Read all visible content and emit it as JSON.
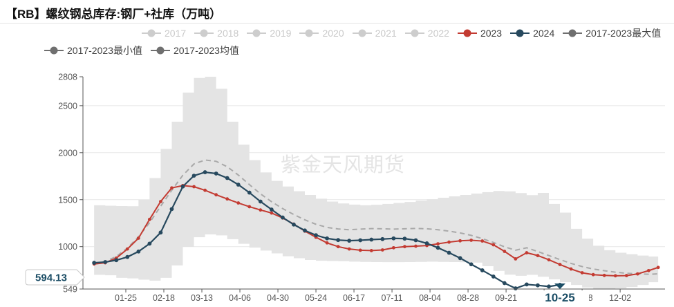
{
  "title": "【RB】螺纹钢总库存:钢厂+社库（万吨）",
  "watermark": "紫金天风期货",
  "legend": {
    "row1": [
      {
        "label": "2017",
        "color": "#cdcdcd",
        "text_color": "#c9c9c9",
        "selected": false
      },
      {
        "label": "2018",
        "color": "#cdcdcd",
        "text_color": "#c9c9c9",
        "selected": false
      },
      {
        "label": "2019",
        "color": "#cdcdcd",
        "text_color": "#c9c9c9",
        "selected": false
      },
      {
        "label": "2020",
        "color": "#cdcdcd",
        "text_color": "#c9c9c9",
        "selected": false
      },
      {
        "label": "2021",
        "color": "#cdcdcd",
        "text_color": "#c9c9c9",
        "selected": false
      },
      {
        "label": "2022",
        "color": "#cdcdcd",
        "text_color": "#c9c9c9",
        "selected": false
      },
      {
        "label": "2023",
        "color": "#c33b32",
        "text_color": "#3f3f3f",
        "selected": true
      },
      {
        "label": "2024",
        "color": "#27495e",
        "text_color": "#3f3f3f",
        "selected": true
      },
      {
        "label": "2017-2023最大值",
        "color": "#6f6f6f",
        "text_color": "#3f3f3f",
        "selected": true
      }
    ],
    "row2": [
      {
        "label": "2017-2023最小值",
        "color": "#6f6f6f",
        "text_color": "#3f3f3f",
        "selected": true
      },
      {
        "label": "2017-2023均值",
        "color": "#6f6f6f",
        "text_color": "#3f3f3f",
        "selected": true
      }
    ]
  },
  "chart_data": {
    "type": "line",
    "title": "【RB】螺纹钢总库存:钢厂+社库（万吨）",
    "ylabel": "万吨",
    "ylim": [
      549,
      2808
    ],
    "grid": true,
    "y_ticks": [
      {
        "v": 2808,
        "label": "2808",
        "grid": false
      },
      {
        "v": 2500,
        "label": "2500",
        "grid": true
      },
      {
        "v": 2000,
        "label": "2000",
        "grid": true
      },
      {
        "v": 1500,
        "label": "1500",
        "grid": true
      },
      {
        "v": 1000,
        "label": "1000",
        "grid": true
      },
      {
        "v": 549,
        "label": "549",
        "grid": false
      }
    ],
    "x_ticks": [
      {
        "d": 25,
        "label": "01-25"
      },
      {
        "d": 49,
        "label": "02-18"
      },
      {
        "d": 73,
        "label": "03-13"
      },
      {
        "d": 97,
        "label": "04-06"
      },
      {
        "d": 121,
        "label": "04-30"
      },
      {
        "d": 145,
        "label": "05-24"
      },
      {
        "d": 169,
        "label": "06-17"
      },
      {
        "d": 193,
        "label": "07-11"
      },
      {
        "d": 217,
        "label": "08-04"
      },
      {
        "d": 241,
        "label": "08-28"
      },
      {
        "d": 265,
        "label": "09-21"
      },
      {
        "d": 289,
        "label": ""
      },
      {
        "d": 313,
        "label": "11-08"
      },
      {
        "d": 337,
        "label": "12-02"
      }
    ],
    "days": [
      5,
      12,
      19,
      26,
      33,
      40,
      47,
      54,
      61,
      68,
      75,
      82,
      89,
      96,
      103,
      110,
      117,
      124,
      131,
      138,
      145,
      152,
      159,
      166,
      173,
      180,
      187,
      194,
      201,
      208,
      215,
      222,
      229,
      236,
      243,
      250,
      257,
      264,
      271,
      278,
      285,
      292,
      299,
      306,
      313,
      320,
      327,
      334,
      341,
      348,
      355,
      361
    ],
    "series": [
      {
        "name": "2017-2023最大值",
        "role": "band-upper",
        "color": "#e4e4e4",
        "values": [
          1440,
          1436,
          1432,
          1430,
          1500,
          1730,
          2040,
          2330,
          2640,
          2795,
          2808,
          2680,
          2330,
          2085,
          1920,
          1790,
          1700,
          1640,
          1590,
          1550,
          1510,
          1480,
          1460,
          1448,
          1440,
          1446,
          1455,
          1465,
          1475,
          1490,
          1505,
          1520,
          1535,
          1550,
          1565,
          1580,
          1592,
          1588,
          1570,
          1548,
          1572,
          1455,
          1362,
          1190,
          1085,
          1010,
          962,
          935,
          920,
          905,
          895,
          890
        ]
      },
      {
        "name": "2017-2023最小值",
        "role": "band-lower",
        "color": "#e4e4e4",
        "values": [
          700,
          695,
          668,
          662,
          648,
          638,
          668,
          800,
          1000,
          1100,
          1130,
          1120,
          1080,
          1030,
          990,
          958,
          928,
          898,
          876,
          858,
          850,
          847,
          845,
          841,
          838,
          836,
          835,
          835,
          836,
          838,
          840,
          838,
          836,
          834,
          830,
          792,
          742,
          702,
          690,
          700,
          680,
          652,
          622,
          592,
          566,
          552,
          549,
          556,
          570,
          592,
          622,
          650
        ]
      },
      {
        "name": "2017-2023均值",
        "role": "mean",
        "line_style": "dashed",
        "color": "#a9a9a9",
        "values": [
          820,
          842,
          895,
          985,
          1105,
          1255,
          1430,
          1600,
          1760,
          1880,
          1922,
          1908,
          1850,
          1762,
          1660,
          1562,
          1478,
          1405,
          1342,
          1285,
          1238,
          1205,
          1188,
          1180,
          1186,
          1192,
          1190,
          1186,
          1190,
          1194,
          1190,
          1180,
          1165,
          1146,
          1120,
          1085,
          1045,
          998,
          962,
          988,
          948,
          905,
          862,
          822,
          788,
          762,
          744,
          728,
          717,
          710,
          706,
          710
        ]
      },
      {
        "name": "2023",
        "role": "line",
        "color": "#c33b32",
        "marker": true,
        "values": [
          815,
          828,
          878,
          975,
          1090,
          1290,
          1480,
          1625,
          1650,
          1638,
          1600,
          1552,
          1508,
          1465,
          1425,
          1390,
          1358,
          1305,
          1240,
          1165,
          1100,
          1040,
          1000,
          975,
          962,
          958,
          965,
          988,
          1000,
          1005,
          1012,
          1030,
          1048,
          1062,
          1068,
          1060,
          1020,
          950,
          870,
          935,
          905,
          860,
          810,
          762,
          722,
          702,
          694,
          690,
          692,
          710,
          745,
          779
        ]
      },
      {
        "name": "2024",
        "role": "line",
        "color": "#27495e",
        "marker": true,
        "values": [
          828,
          836,
          856,
          890,
          948,
          1032,
          1150,
          1400,
          1640,
          1755,
          1792,
          1778,
          1730,
          1660,
          1575,
          1480,
          1395,
          1310,
          1235,
          1172,
          1122,
          1088,
          1070,
          1063,
          1068,
          1075,
          1080,
          1088,
          1085,
          1068,
          1035,
          988,
          935,
          878,
          812,
          748,
          682,
          612,
          556,
          598,
          588,
          576,
          594.13
        ]
      }
    ],
    "pointer": {
      "x_label": "10-25",
      "x_day": 299,
      "y_label": "594.13",
      "y_value": 594.13,
      "color": "#1c4e66"
    }
  }
}
